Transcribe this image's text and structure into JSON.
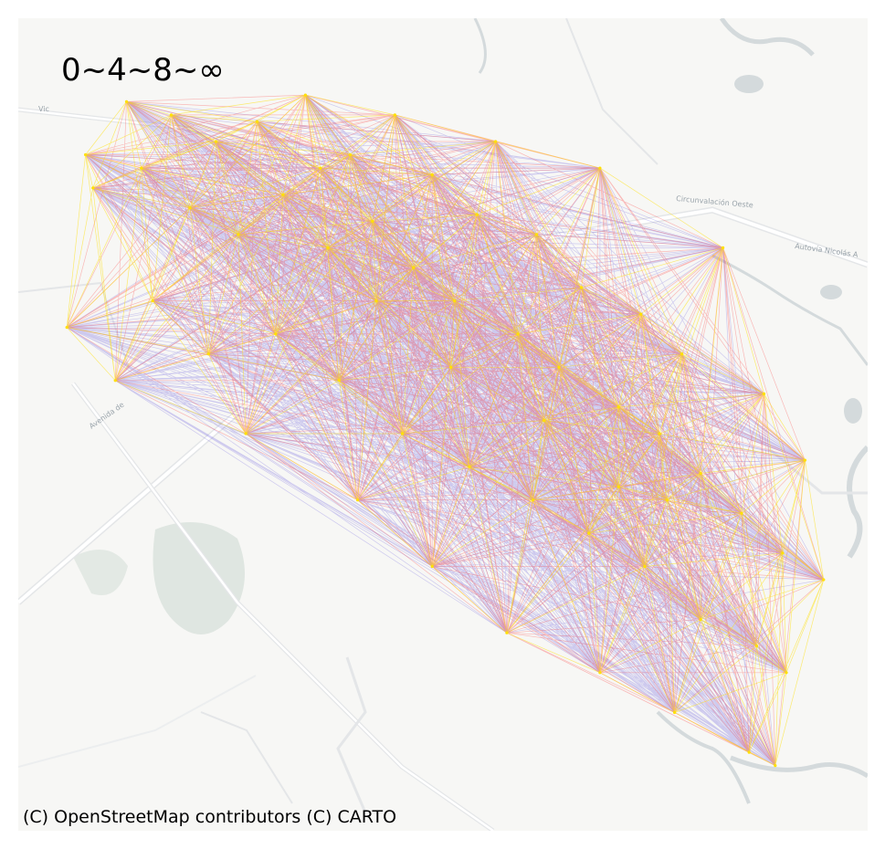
{
  "map": {
    "legend_label": "0~4~8~∞",
    "attribution": "(C) OpenStreetMap contributors (C) CARTO",
    "road_labels": [
      "Vic",
      "Avenida de",
      "Autovía Nicolás A",
      "Circunvalación Oeste"
    ],
    "colors": {
      "background": "#f7f7f5",
      "water": "#d4dadc",
      "green": "#dfe6e1",
      "road": "#ffffff",
      "road_casing": "#e4e6e8",
      "band_short": "#ffe000",
      "band_mid": "#ff1a1a",
      "band_long": "#3a2bd8"
    }
  },
  "network": {
    "description_of_bands": [
      "0~4",
      "4~8",
      "8~∞"
    ],
    "nodes": [
      [
        -60.683,
        -31.598
      ],
      [
        -60.681,
        -31.603
      ],
      [
        -60.672,
        -31.59
      ],
      [
        -60.668,
        -31.6
      ],
      [
        -60.66,
        -31.592
      ],
      [
        -60.655,
        -31.606
      ],
      [
        -60.648,
        -31.596
      ],
      [
        -60.642,
        -31.61
      ],
      [
        -60.637,
        -31.593
      ],
      [
        -60.63,
        -31.604
      ],
      [
        -60.624,
        -31.589
      ],
      [
        -60.618,
        -31.612
      ],
      [
        -60.612,
        -31.598
      ],
      [
        -60.606,
        -31.608
      ],
      [
        -60.6,
        -31.592
      ],
      [
        -60.595,
        -31.615
      ],
      [
        -60.59,
        -31.601
      ],
      [
        -60.584,
        -31.62
      ],
      [
        -60.578,
        -31.607
      ],
      [
        -60.573,
        -31.596
      ],
      [
        -60.567,
        -31.625
      ],
      [
        -60.562,
        -31.61
      ],
      [
        -60.556,
        -31.63
      ],
      [
        -60.55,
        -31.618
      ],
      [
        -60.545,
        -31.6
      ],
      [
        -60.54,
        -31.636
      ],
      [
        -60.534,
        -31.622
      ],
      [
        -60.529,
        -31.64
      ],
      [
        -60.523,
        -31.628
      ],
      [
        -60.518,
        -31.646
      ],
      [
        -60.512,
        -31.612
      ],
      [
        -60.507,
        -31.652
      ],
      [
        -60.501,
        -31.634
      ],
      [
        -60.496,
        -31.658
      ],
      [
        -60.49,
        -31.644
      ],
      [
        -60.485,
        -31.662
      ],
      [
        -60.665,
        -31.62
      ],
      [
        -60.65,
        -31.628
      ],
      [
        -60.632,
        -31.625
      ],
      [
        -60.615,
        -31.632
      ],
      [
        -60.598,
        -31.64
      ],
      [
        -60.58,
        -31.645
      ],
      [
        -60.563,
        -31.65
      ],
      [
        -60.548,
        -31.655
      ],
      [
        -60.533,
        -31.66
      ],
      [
        -60.518,
        -31.668
      ],
      [
        -60.503,
        -31.672
      ],
      [
        -60.688,
        -31.624
      ],
      [
        -60.675,
        -31.632
      ],
      [
        -60.61,
        -31.65
      ],
      [
        -60.59,
        -31.66
      ],
      [
        -60.57,
        -31.67
      ],
      [
        -60.545,
        -31.676
      ],
      [
        -60.525,
        -31.682
      ],
      [
        -60.505,
        -31.688
      ],
      [
        -60.495,
        -31.676
      ],
      [
        -60.498,
        -31.69
      ],
      [
        -60.64,
        -31.64
      ],
      [
        -60.62,
        -31.6
      ],
      [
        -60.605,
        -31.62
      ],
      [
        -60.585,
        -31.63
      ],
      [
        -60.56,
        -31.638
      ],
      [
        -60.54,
        -31.648
      ],
      [
        -60.527,
        -31.65
      ]
    ],
    "nodes_note": "node coordinates are geographic longitude/latitude in degrees"
  }
}
